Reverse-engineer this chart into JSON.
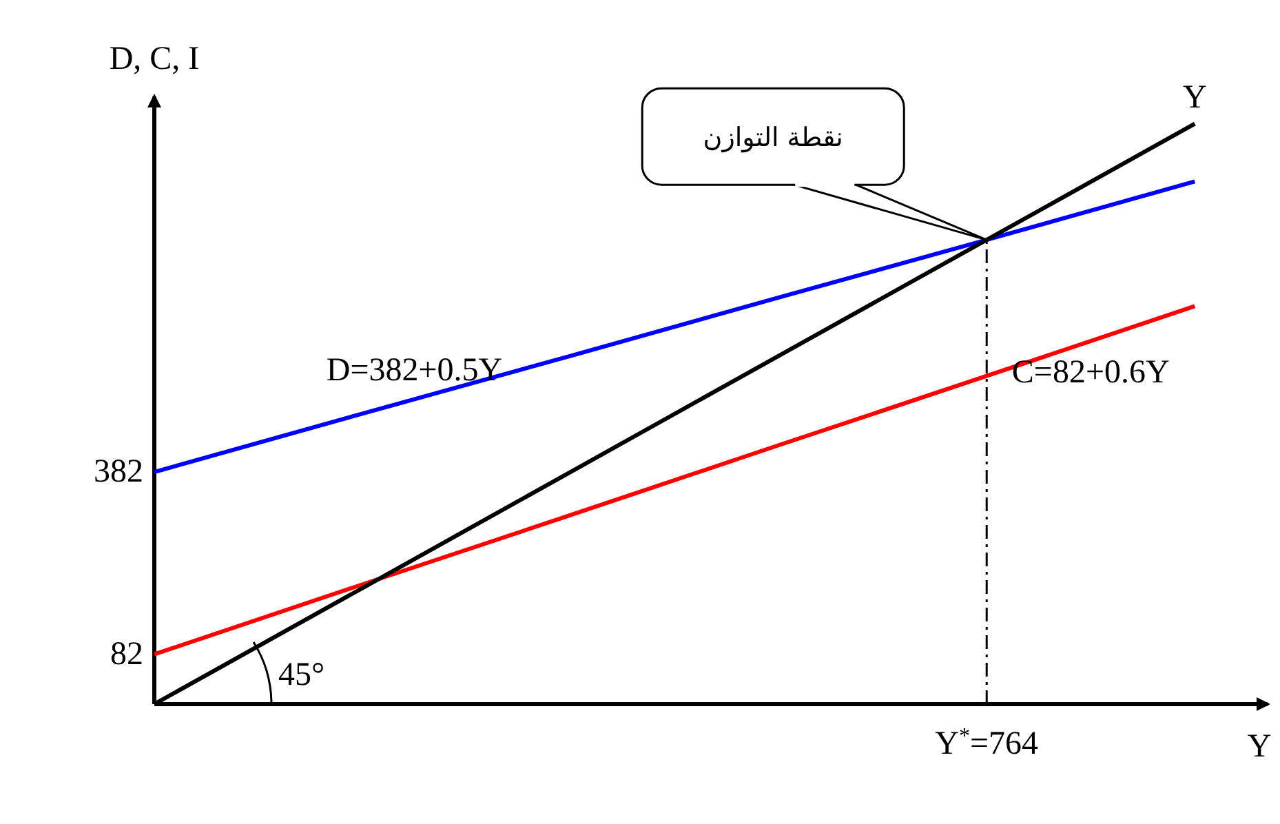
{
  "chart_data": {
    "type": "line",
    "xlabel": "Y",
    "ylabel": "D, C, I",
    "categories": [
      null,
      null,
      null,
      null,
      "Y$^{*}$=764",
      null
    ],
    "series": [
      {
        "name": "D=382+0.5Y",
        "color": "#0000ff",
        "values": [
          382,
          478,
          573,
          669,
          764,
          860
        ]
      },
      {
        "name": "C=82+0.6Y",
        "color": "#ff0000",
        "values": [
          82,
          197,
          311,
          426,
          540,
          655
        ]
      },
      {
        "name": "Y",
        "color": "#000000",
        "values": [
          0,
          191,
          382,
          573,
          764,
          955
        ]
      }
    ],
    "ylim": [
      0,
      1000
    ],
    "yticks": [
      82,
      382
    ],
    "marker": "none",
    "line_style": "solid",
    "ref_lines": [
      {
        "axis": "x",
        "value": "Y$^{*}$=764",
        "line_style": "dashdot",
        "color": "#000000"
      }
    ],
    "annotations": [
      {
        "text": "نقطة التوازن",
        "x": "Y$^{*}$=764",
        "y": 764
      },
      "45°"
    ]
  }
}
